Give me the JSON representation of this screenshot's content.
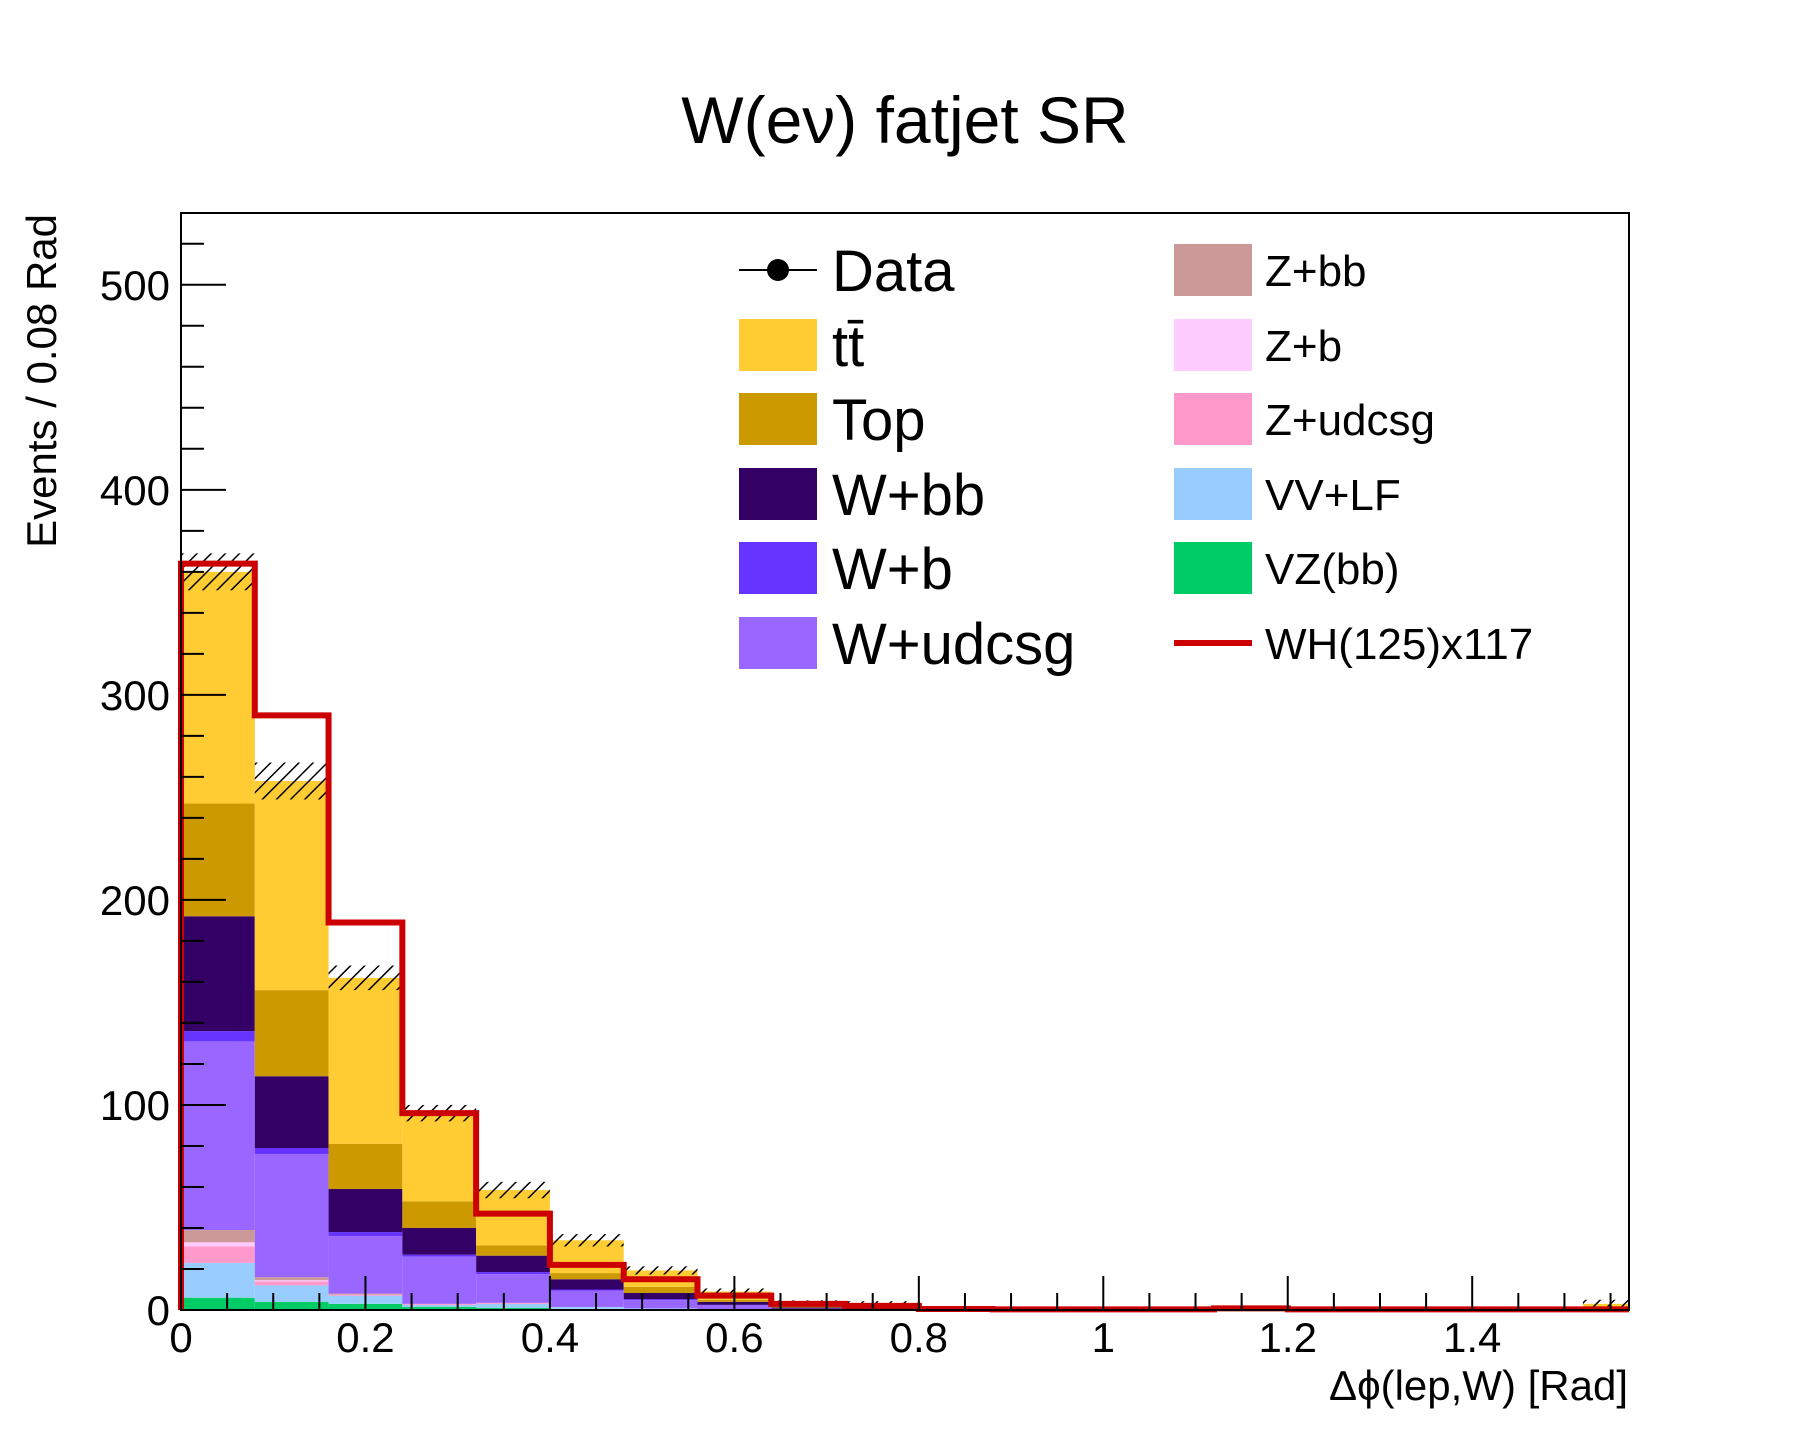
{
  "chart_data": {
    "type": "bar",
    "stacked": true,
    "title": "W(eν) fatjet SR",
    "xlabel": "Δϕ(lep,W) [Rad]",
    "ylabel": "Events / 0.08 Rad",
    "xlim": [
      0,
      1.57
    ],
    "ylim": [
      0,
      535
    ],
    "x_ticks": [
      0,
      0.2,
      0.4,
      0.6,
      0.8,
      1,
      1.2,
      1.4
    ],
    "x_tick_labels": [
      "0",
      "0.2",
      "0.4",
      "0.6",
      "0.8",
      "1",
      "1.2",
      "1.4"
    ],
    "y_ticks": [
      0,
      100,
      200,
      300,
      400,
      500
    ],
    "y_tick_labels": [
      "0",
      "100",
      "200",
      "300",
      "400",
      "500"
    ],
    "bin_edges": [
      0,
      0.08,
      0.16,
      0.24,
      0.32,
      0.4,
      0.48,
      0.56,
      0.64,
      0.72,
      0.8,
      0.88,
      0.96,
      1.04,
      1.12,
      1.2,
      1.28,
      1.36,
      1.44,
      1.52,
      1.57
    ],
    "series": [
      {
        "name": "VZ(bb)",
        "color": "#00cc66",
        "values": [
          6,
          4,
          3,
          1.5,
          1,
          0.5,
          0.3,
          0.2,
          0,
          0,
          0,
          0,
          0,
          0,
          0,
          0,
          0,
          0,
          0,
          0
        ]
      },
      {
        "name": "VV+LF",
        "color": "#99ccff",
        "values": [
          17,
          8,
          4,
          1,
          2,
          1,
          0.5,
          0.3,
          0.2,
          0,
          0,
          0,
          0,
          0,
          0,
          0,
          0,
          0,
          0,
          0
        ]
      },
      {
        "name": "Z+udcsg",
        "color": "#ff99cc",
        "values": [
          8,
          2,
          0.5,
          0.5,
          0.5,
          0,
          0,
          0,
          0,
          0,
          0,
          0,
          0,
          0,
          0,
          0,
          0,
          0,
          0,
          0
        ]
      },
      {
        "name": "Z+b",
        "color": "#ffccff",
        "values": [
          2,
          0.5,
          0,
          0,
          0,
          0,
          0,
          0,
          0,
          0,
          0,
          0,
          0,
          0,
          0,
          0,
          0,
          0,
          0,
          0
        ]
      },
      {
        "name": "Z+bb",
        "color": "#cc9999",
        "values": [
          6,
          1.5,
          0.5,
          0,
          0,
          0,
          0,
          0,
          0,
          0,
          0,
          0,
          0,
          0,
          0,
          0,
          0,
          0,
          0,
          0
        ]
      },
      {
        "name": "W+udcsg",
        "color": "#9966ff",
        "values": [
          92,
          60,
          28,
          23,
          14,
          8,
          4,
          2,
          0.5,
          0.5,
          0,
          0,
          0,
          0,
          0,
          0,
          0,
          0,
          0,
          0
        ]
      },
      {
        "name": "W+b",
        "color": "#6633ff",
        "values": [
          5,
          3,
          2,
          1,
          1,
          0.5,
          0.5,
          0,
          0,
          0,
          0,
          0,
          0,
          0,
          0,
          0,
          0,
          0,
          0,
          0
        ]
      },
      {
        "name": "W+bb",
        "color": "#330066",
        "values": [
          56,
          35,
          21,
          13,
          8,
          5,
          3,
          1.5,
          0.5,
          0.3,
          0,
          0,
          0,
          0,
          0,
          0,
          0,
          0,
          0,
          0
        ]
      },
      {
        "name": "Top",
        "color": "#cc9900",
        "values": [
          55,
          42,
          22,
          13,
          5,
          3,
          3,
          1,
          0.5,
          0.5,
          0,
          0,
          0,
          0,
          0,
          0,
          0,
          0,
          0,
          0
        ]
      },
      {
        "name": "tt̄",
        "color": "#ffcc33",
        "values": [
          113,
          102,
          81,
          43,
          27,
          16,
          8,
          4,
          2,
          2,
          0.3,
          0.3,
          0.2,
          0,
          0.3,
          0,
          0,
          0,
          0,
          3
        ]
      }
    ],
    "uncertainty_band": {
      "halfwidth": [
        9,
        9,
        6,
        4,
        4,
        3,
        2,
        1.5,
        1,
        1,
        0.5,
        0.5,
        0.5,
        0.3,
        0.5,
        0.3,
        0.3,
        0.3,
        0.3,
        2
      ]
    },
    "signal": {
      "name": "WH(125)x117",
      "color": "#cc0000",
      "values": [
        364,
        290,
        189,
        96,
        47,
        22,
        15,
        7,
        3,
        2,
        0.5,
        0.3,
        0.3,
        0.3,
        0.8,
        0.3,
        0.3,
        0.3,
        0.3,
        0.3
      ]
    },
    "data": {
      "name": "Data",
      "values": []
    },
    "legend": {
      "placement": "top-right",
      "entries": [
        {
          "label": "Data",
          "style": "marker",
          "color": "#000000"
        },
        {
          "label": "tt̄",
          "style": "fill",
          "color": "#ffcc33"
        },
        {
          "label": "Top",
          "style": "fill",
          "color": "#cc9900"
        },
        {
          "label": "W+bb",
          "style": "fill",
          "color": "#330066"
        },
        {
          "label": "W+b",
          "style": "fill",
          "color": "#6633ff"
        },
        {
          "label": "W+udcsg",
          "style": "fill",
          "color": "#9966ff"
        },
        {
          "label": "Z+bb",
          "style": "fill",
          "color": "#cc9999"
        },
        {
          "label": "Z+b",
          "style": "fill",
          "color": "#ffccff"
        },
        {
          "label": "Z+udcsg",
          "style": "fill",
          "color": "#ff99cc"
        },
        {
          "label": "VV+LF",
          "style": "fill",
          "color": "#99ccff"
        },
        {
          "label": "VZ(bb)",
          "style": "fill",
          "color": "#00cc66"
        },
        {
          "label": "WH(125)x117",
          "style": "line",
          "color": "#cc0000"
        }
      ]
    },
    "grid": false
  }
}
